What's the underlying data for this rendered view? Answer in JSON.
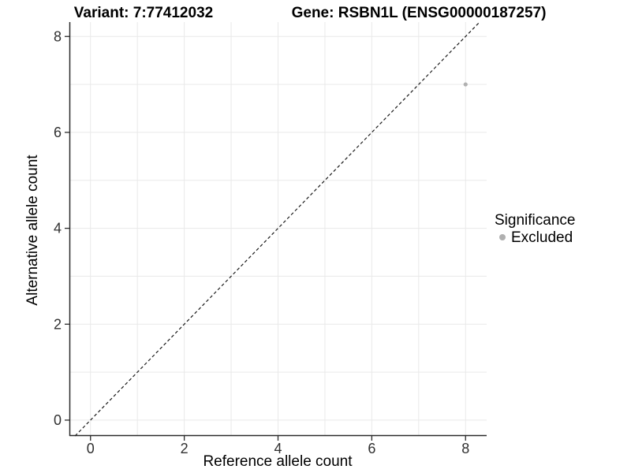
{
  "colors": {
    "background": "#ffffff",
    "axis": "#2a2a2a",
    "tick_text": "#303030",
    "grid": "#e9e9e9",
    "point": "#b0b0b0",
    "reference_line": "#1a1a1a"
  },
  "chart_data": {
    "type": "scatter",
    "title_variant": "Variant: 7:77412032",
    "title_gene": "Gene: RSBN1L (ENSG00000187257)",
    "xlabel": "Reference allele count",
    "ylabel": "Alternative allele count",
    "xlim": [
      -0.45,
      8.45
    ],
    "ylim": [
      -0.33,
      8.3
    ],
    "x_ticks": [
      0,
      2,
      4,
      6,
      8
    ],
    "y_ticks": [
      0,
      2,
      4,
      6,
      8
    ],
    "grid": {
      "show": true,
      "interval": 1,
      "color": "#e9e9e9"
    },
    "reference_line": {
      "kind": "identity y=x",
      "style": "dashed",
      "color": "#1a1a1a"
    },
    "legend": {
      "position": "right",
      "title": "Significance",
      "items": [
        {
          "label": "Excluded",
          "color": "#b0b0b0"
        }
      ]
    },
    "series": [
      {
        "name": "Excluded",
        "color": "#b0b0b0",
        "points": [
          {
            "x": 8,
            "y": 7
          }
        ]
      }
    ]
  }
}
